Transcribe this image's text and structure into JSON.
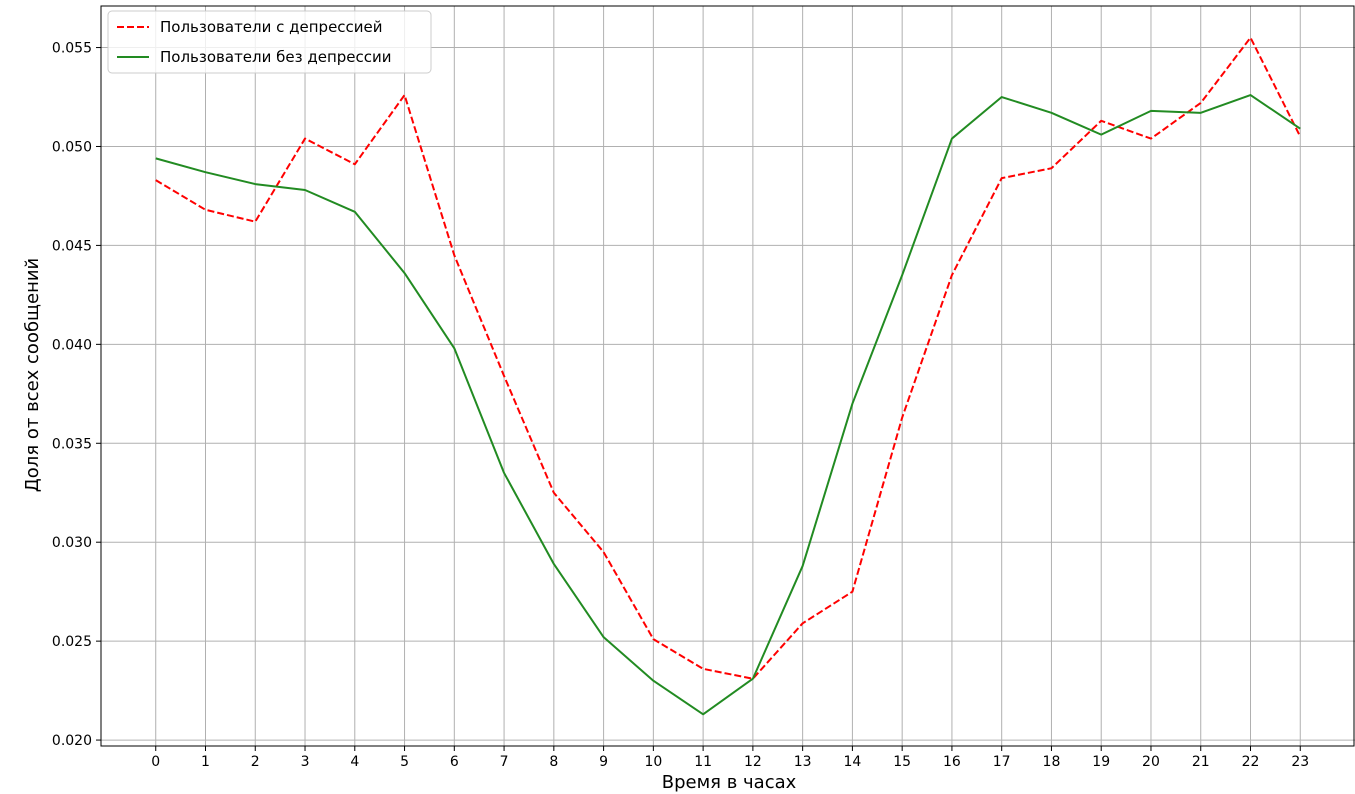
{
  "chart_data": {
    "type": "line",
    "title": "",
    "xlabel": "Время в часах",
    "ylabel": "Доля от всех сообщений",
    "x": [
      0,
      1,
      2,
      3,
      4,
      5,
      6,
      7,
      8,
      9,
      10,
      11,
      12,
      13,
      14,
      15,
      16,
      17,
      18,
      19,
      20,
      21,
      22,
      23
    ],
    "x_tick_labels": [
      "0",
      "1",
      "2",
      "3",
      "4",
      "5",
      "6",
      "7",
      "8",
      "9",
      "10",
      "11",
      "12",
      "13",
      "14",
      "15",
      "16",
      "17",
      "18",
      "19",
      "20",
      "21",
      "22",
      "23"
    ],
    "xlim": [
      -1.1,
      24.1
    ],
    "ylim": [
      0.0197,
      0.0571
    ],
    "y_ticks": [
      0.02,
      0.025,
      0.03,
      0.035,
      0.04,
      0.045,
      0.05,
      0.055
    ],
    "y_tick_labels": [
      "0.020",
      "0.025",
      "0.030",
      "0.035",
      "0.040",
      "0.045",
      "0.050",
      "0.055"
    ],
    "grid": true,
    "legend_position": "top-left",
    "series": [
      {
        "name": "Пользователи с депрессией",
        "color": "#ff0000",
        "line_style": "dashed",
        "values": [
          0.0483,
          0.0468,
          0.0462,
          0.0504,
          0.0491,
          0.0526,
          0.0445,
          0.0384,
          0.0325,
          0.0295,
          0.0251,
          0.0236,
          0.0231,
          0.0259,
          0.0275,
          0.0363,
          0.0435,
          0.0484,
          0.0489,
          0.0513,
          0.0504,
          0.0522,
          0.0555,
          0.0505
        ]
      },
      {
        "name": "Пользователи без депрессии",
        "color": "#228b22",
        "line_style": "solid",
        "values": [
          0.0494,
          0.0487,
          0.0481,
          0.0478,
          0.0467,
          0.0436,
          0.0398,
          0.0335,
          0.0289,
          0.0252,
          0.023,
          0.0213,
          0.0231,
          0.0288,
          0.037,
          0.0435,
          0.0504,
          0.0525,
          0.0517,
          0.0506,
          0.0518,
          0.0517,
          0.0526,
          0.0509
        ]
      }
    ]
  }
}
